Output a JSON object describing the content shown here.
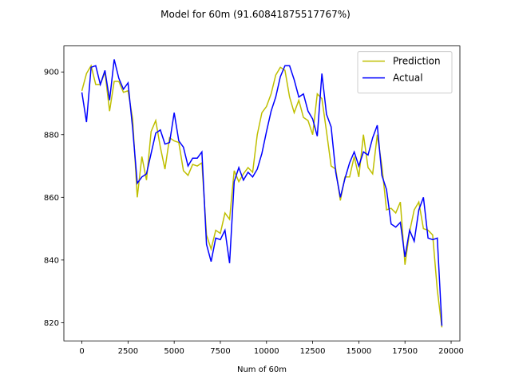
{
  "chart_data": {
    "type": "line",
    "title": "Model for 60m (91.60841875517767%)",
    "x_label": "Num of 60m",
    "x": [
      0,
      250,
      500,
      750,
      1000,
      1250,
      1500,
      1750,
      2000,
      2250,
      2500,
      2750,
      3000,
      3250,
      3500,
      3750,
      4000,
      4250,
      4500,
      4750,
      5000,
      5250,
      5500,
      5750,
      6000,
      6250,
      6500,
      6750,
      7000,
      7250,
      7500,
      7750,
      8000,
      8250,
      8500,
      8750,
      9000,
      9250,
      9500,
      9750,
      10000,
      10250,
      10500,
      10750,
      11000,
      11250,
      11500,
      11750,
      12000,
      12250,
      12500,
      12750,
      13000,
      13250,
      13500,
      13750,
      14000,
      14250,
      14500,
      14750,
      15000,
      15250,
      15500,
      15750,
      16000,
      16250,
      16500,
      16750,
      17000,
      17250,
      17500,
      17750,
      18000,
      18250,
      18500,
      18750,
      19000,
      19250,
      19500
    ],
    "series": [
      {
        "name": "Prediction",
        "color": "#bfbf00",
        "values": [
          894,
          899.5,
          902,
          896,
          896,
          900,
          887.5,
          897,
          897,
          893.5,
          894,
          885,
          860,
          873,
          865.5,
          881,
          884.5,
          876,
          869,
          879,
          878,
          877.5,
          868.5,
          867,
          870.5,
          870,
          871,
          848,
          843.5,
          849.5,
          848.5,
          855,
          853,
          868.5,
          865,
          867.5,
          869.5,
          868,
          880,
          887,
          889,
          893,
          899,
          901.5,
          900.5,
          892,
          887,
          891,
          885.5,
          884.5,
          880,
          893,
          891.5,
          881,
          870,
          869,
          859,
          866.5,
          866.5,
          873,
          866.5,
          880,
          869.5,
          867.5,
          880,
          870,
          856,
          856.5,
          855,
          858.5,
          838.5,
          849,
          856,
          858.5,
          850,
          849.5,
          848,
          830.5,
          818.5
        ]
      },
      {
        "name": "Actual",
        "color": "#0000ff",
        "values": [
          893.5,
          884,
          901.5,
          902,
          896,
          900.5,
          891,
          904,
          898,
          894.5,
          896.5,
          882,
          864.5,
          866.5,
          867.5,
          874,
          880.5,
          881.5,
          877,
          877.5,
          887,
          878,
          876,
          870,
          872.5,
          872.5,
          874.5,
          845,
          839.5,
          847,
          846.5,
          849.5,
          839,
          865,
          869.5,
          865.5,
          868,
          866.5,
          869,
          874,
          881,
          887.5,
          892,
          898.5,
          902,
          902,
          897.5,
          892,
          893,
          887.5,
          885,
          879.5,
          899.5,
          886.5,
          882.5,
          868,
          860,
          866,
          871,
          874.5,
          870,
          874.5,
          873.5,
          879,
          883,
          867,
          862.5,
          851.5,
          850.5,
          852,
          841,
          849.5,
          846,
          856,
          860,
          847,
          846.5,
          847,
          819
        ]
      }
    ],
    "xlim": [
      -975,
      20475
    ],
    "ylim": [
      814.2,
      908.3
    ],
    "xticks": [
      0,
      2500,
      5000,
      7500,
      10000,
      12500,
      15000,
      17500,
      20000
    ],
    "yticks": [
      820,
      840,
      860,
      880,
      900
    ],
    "legend": "upper right"
  }
}
